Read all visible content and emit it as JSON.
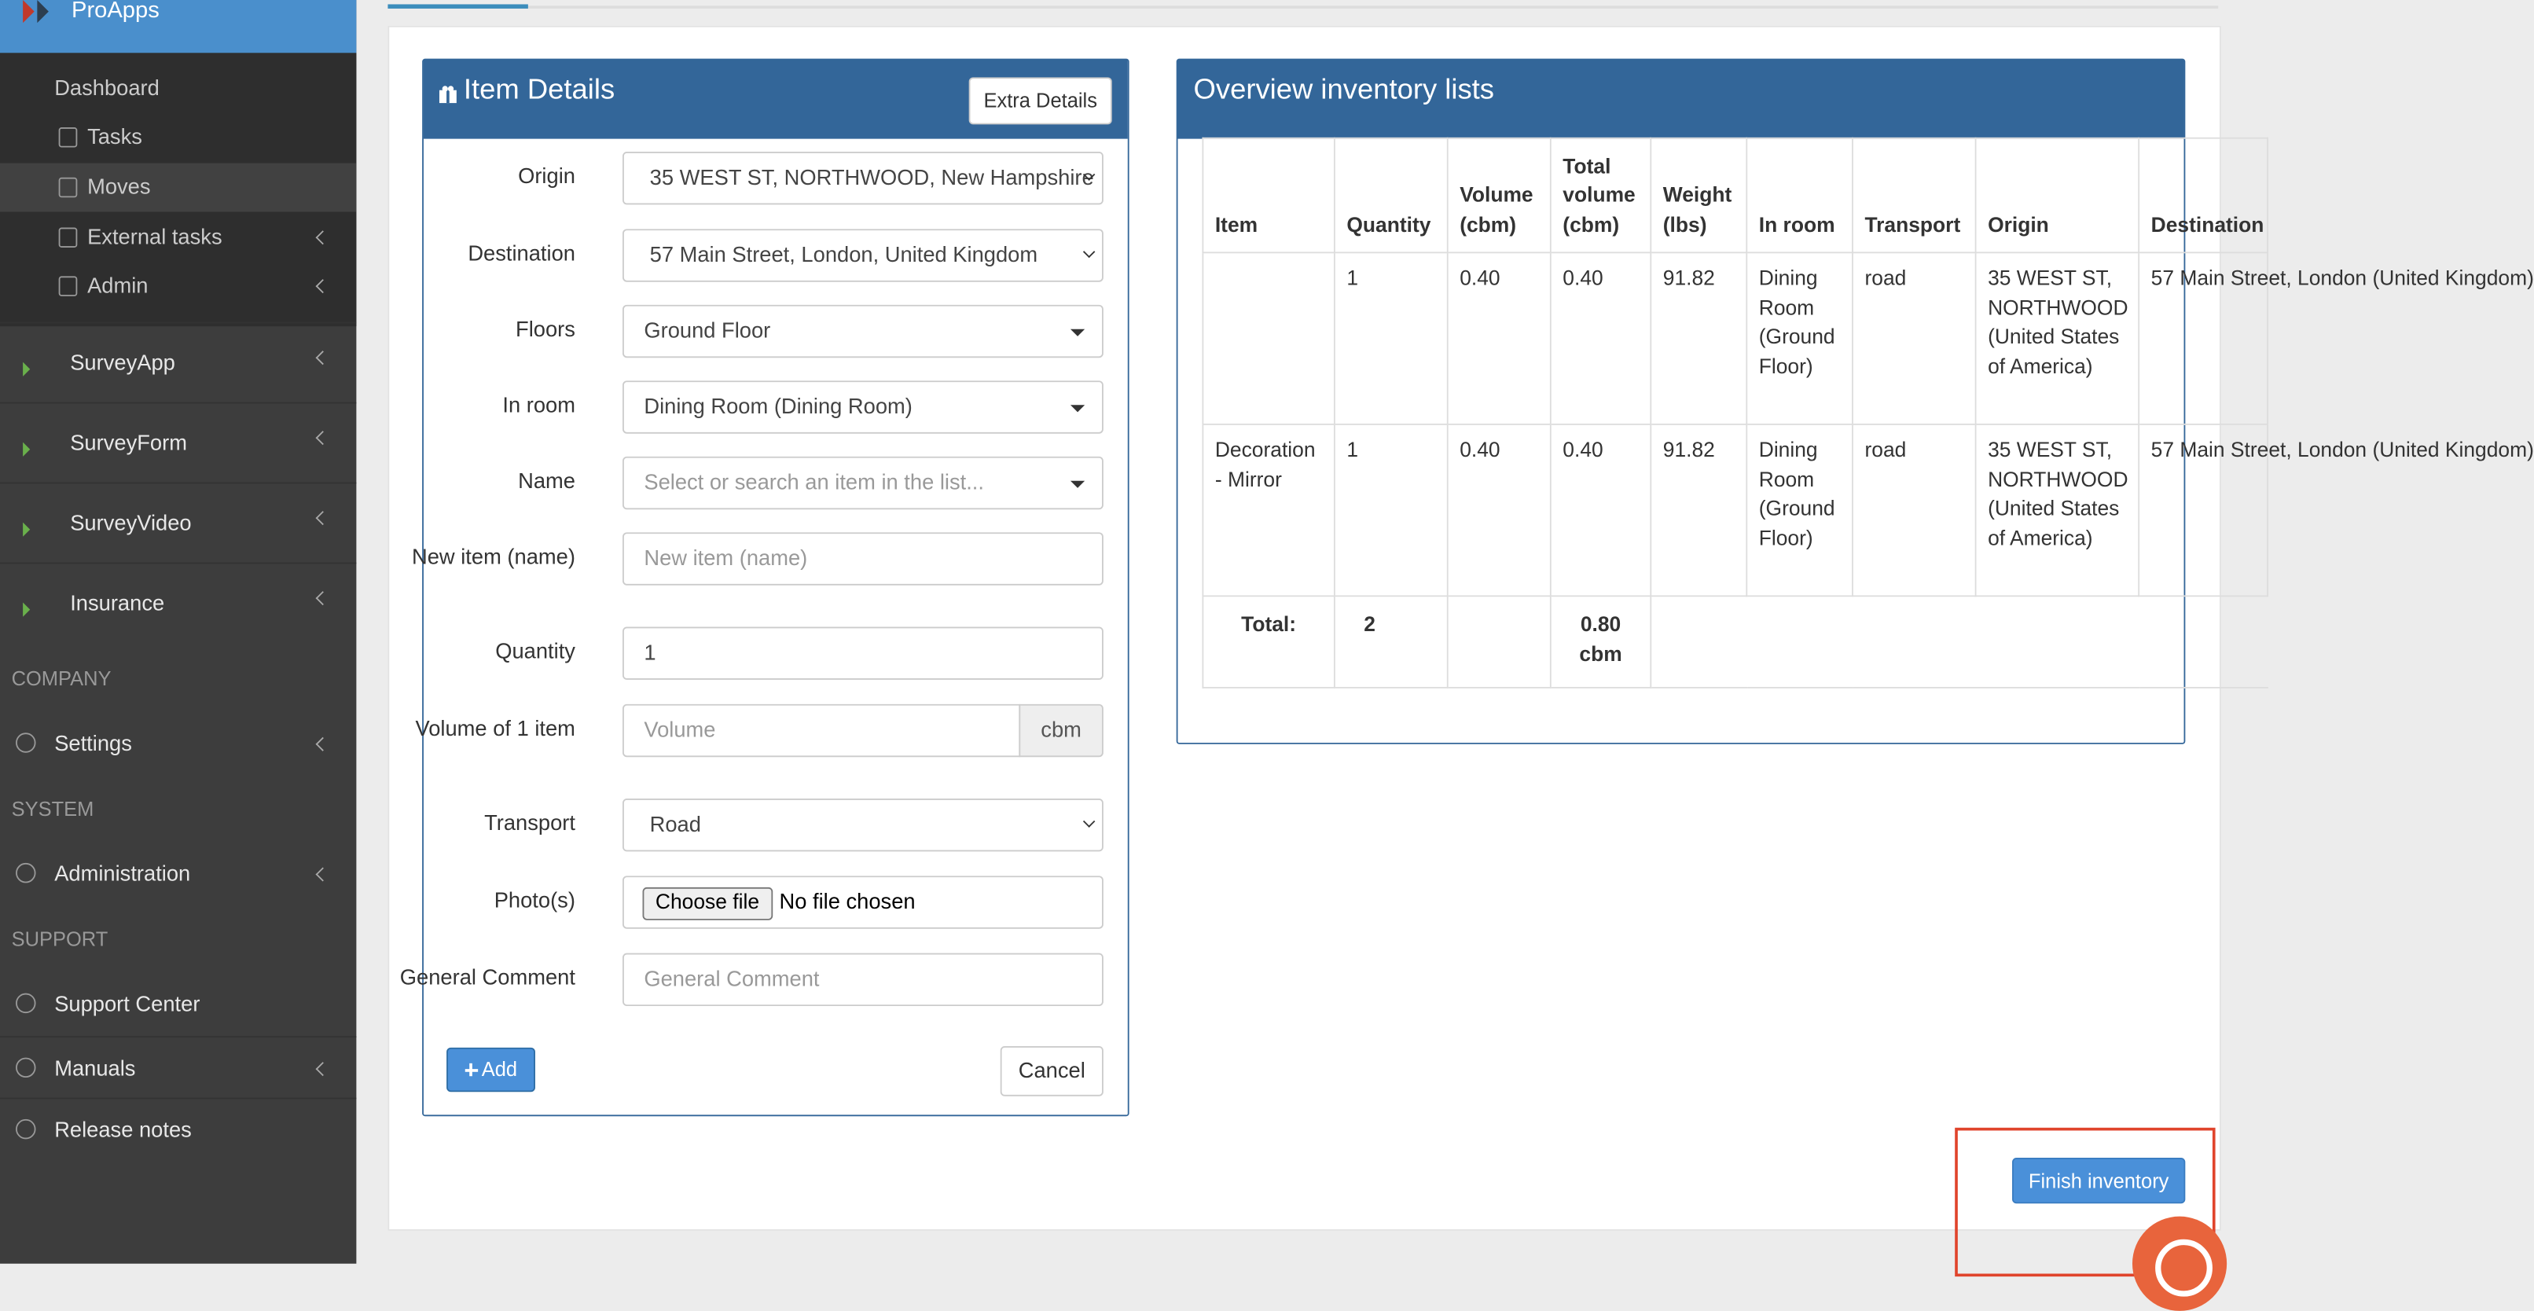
{
  "sidebar": {
    "brand": "ProApps",
    "submenu": [
      "Dashboard",
      "Tasks",
      "Moves",
      "External tasks",
      "Admin"
    ],
    "apps": [
      "SurveyApp",
      "SurveyForm",
      "SurveyVideo",
      "Insurance"
    ],
    "sections": [
      {
        "title": "COMPANY",
        "items": [
          "Settings"
        ]
      },
      {
        "title": "SYSTEM",
        "items": [
          "Administration"
        ]
      },
      {
        "title": "SUPPORT",
        "items": [
          "Support Center",
          "Manuals",
          "Release notes"
        ]
      }
    ]
  },
  "item_details": {
    "title": "Item Details",
    "extra_button": "Extra Details",
    "fields": [
      {
        "label": "Origin",
        "value": "35 WEST ST, NORTHWOOD, New Hampshire"
      },
      {
        "label": "Destination",
        "value": "57 Main Street, London, United Kingdom"
      },
      {
        "label": "Floors",
        "value": "Ground Floor"
      },
      {
        "label": "In room",
        "value": "Dining Room (Dining Room)"
      },
      {
        "label": "Name",
        "placeholder": "Select or search an item in the list..."
      },
      {
        "label": "New item (name)",
        "placeholder": "New item (name)"
      },
      {
        "label": "Quantity",
        "value": "1"
      },
      {
        "label": "Volume of 1 item",
        "placeholder": "Volume",
        "unit": "cbm"
      },
      {
        "label": "Transport",
        "value": "Road"
      },
      {
        "label": "Photo(s)",
        "button": "Choose file",
        "value": "No file chosen"
      },
      {
        "label": "General Comment",
        "placeholder": "General Comment"
      }
    ],
    "add_button": "Add",
    "cancel_button": "Cancel"
  },
  "overview": {
    "title": "Overview inventory lists",
    "table": {
      "headers": [
        "Item",
        "Quantity",
        "Volume (cbm)",
        "Total volume (cbm)",
        "Weight (lbs)",
        "In room",
        "Transport",
        "Origin",
        "Destination"
      ],
      "rows": [
        [
          "",
          "1",
          "0.40",
          "0.40",
          "91.82",
          "Dining Room (Ground Floor)",
          "road",
          "35 WEST ST, NORTHWOOD (United States of America)",
          "57 Main Street, London (United Kingdom)"
        ],
        [
          "Decoration - Mirror",
          "1",
          "0.40",
          "0.40",
          "91.82",
          "Dining Room (Ground Floor)",
          "road",
          "35 WEST ST, NORTHWOOD (United States of America)",
          "57 Main Street, London (United Kingdom)"
        ]
      ],
      "total": {
        "label": "Total:",
        "quantity": "2",
        "total_volume": "0.80 cbm"
      }
    }
  },
  "finish_button": "Finish inventory"
}
